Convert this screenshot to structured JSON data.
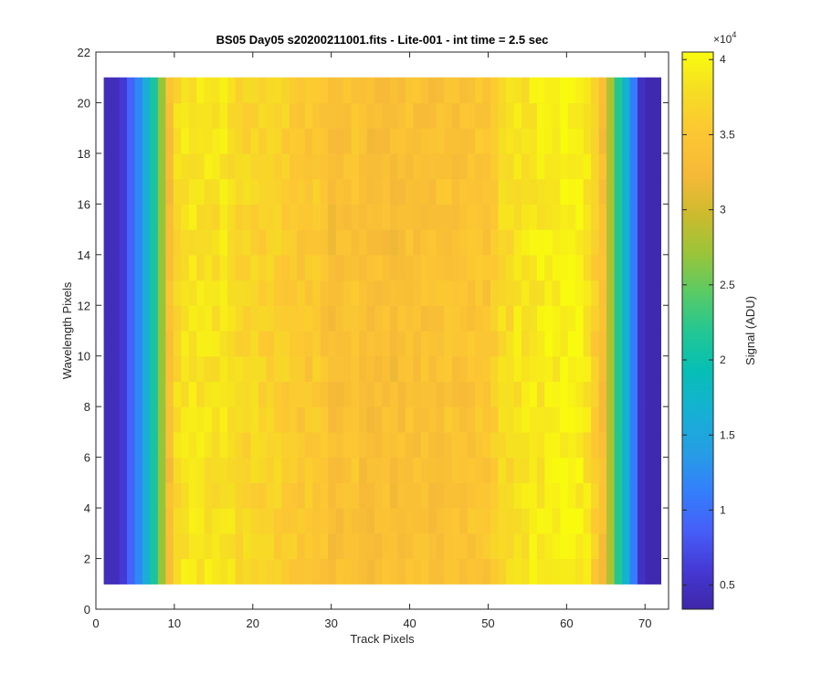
{
  "chart_data": {
    "type": "heatmap",
    "title": "BS05 Day05  s20200211001.fits - Lite-001 - int time = 2.5 sec",
    "xlabel": "Track Pixels",
    "ylabel": "Wavelength Pixels",
    "xlim": [
      0,
      73
    ],
    "ylim": [
      0,
      22
    ],
    "x_ticks": [
      "0",
      "10",
      "20",
      "30",
      "40",
      "50",
      "60",
      "70"
    ],
    "y_ticks": [
      "0",
      "2",
      "4",
      "6",
      "8",
      "10",
      "12",
      "14",
      "16",
      "18",
      "20",
      "22"
    ],
    "x_range": [
      1,
      72
    ],
    "y_range": [
      1,
      21
    ],
    "colormap": "parula",
    "colorbar": {
      "label": "Signal (ADU)",
      "exponent_base": "×10",
      "exponent_power": "4",
      "min": 3400,
      "max": 40500,
      "ticks": [
        "0.5",
        "1",
        "1.5",
        "2",
        "2.5",
        "3",
        "3.5",
        "4"
      ]
    },
    "column_profile": [
      4500,
      4500,
      6000,
      9000,
      12000,
      16000,
      21000,
      27000,
      33500,
      37500,
      38500,
      38500,
      38500,
      38500,
      38000,
      38500,
      38000,
      37000,
      37000,
      37000,
      36500,
      36500,
      36500,
      36000,
      35500,
      35000,
      35000,
      35500,
      34500,
      33000,
      33500,
      34000,
      34500,
      33500,
      33000,
      33500,
      33500,
      33000,
      33500,
      34000,
      34000,
      34000,
      33500,
      34000,
      34500,
      34000,
      34000,
      34500,
      35000,
      34500,
      36000,
      37500,
      37500,
      38500,
      38500,
      39000,
      39000,
      39500,
      39500,
      40000,
      40000,
      39500,
      38500,
      36000,
      33500,
      28000,
      22000,
      17000,
      11000,
      5000,
      3800,
      3800
    ],
    "row_count": 20
  }
}
